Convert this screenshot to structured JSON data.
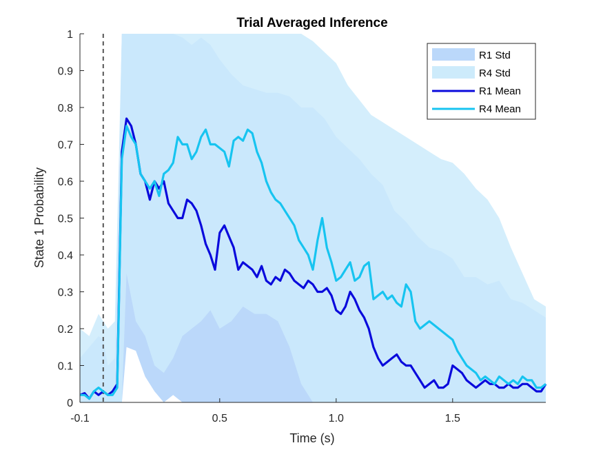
{
  "chart_data": {
    "type": "line",
    "title": "Trial Averaged Inference",
    "xlabel": "Time (s)",
    "ylabel": "State 1 Probability",
    "xlim": [
      -0.1,
      1.9
    ],
    "ylim": [
      0,
      1
    ],
    "x_ticks": [
      -0.1,
      0.5,
      1.0,
      1.5
    ],
    "x_tick_labels": [
      "-0.1",
      "0.5",
      "1.0",
      "1.5"
    ],
    "y_ticks": [
      0,
      0.1,
      0.2,
      0.3,
      0.4,
      0.5,
      0.6,
      0.7,
      0.8,
      0.9,
      1
    ],
    "y_tick_labels": [
      "0",
      "0.1",
      "0.2",
      "0.3",
      "0.4",
      "0.5",
      "0.6",
      "0.7",
      "0.8",
      "0.9",
      "1"
    ],
    "grid": false,
    "legend_position": "top-right",
    "event_marker_x": 0,
    "colors": {
      "r1_mean": "#0A0ADC",
      "r4_mean": "#17C4F0",
      "r1_std": "#BBD8FA",
      "r4_std": "#CDEBFB",
      "overlap": "#B9E1FA",
      "event_line": "#555555"
    },
    "legend": [
      {
        "label": "R1 Std",
        "kind": "patch",
        "color": "#BBD8FA"
      },
      {
        "label": "R4 Std",
        "kind": "patch",
        "color": "#CDEBFB"
      },
      {
        "label": "R1 Mean",
        "kind": "line",
        "color": "#0A0ADC"
      },
      {
        "label": "R4 Mean",
        "kind": "line",
        "color": "#17C4F0"
      }
    ],
    "series": [
      {
        "name": "R1 Mean",
        "x": [
          -0.1,
          -0.08,
          -0.06,
          -0.04,
          -0.02,
          0,
          0.02,
          0.04,
          0.06,
          0.08,
          0.1,
          0.12,
          0.14,
          0.16,
          0.18,
          0.2,
          0.22,
          0.24,
          0.26,
          0.28,
          0.3,
          0.32,
          0.34,
          0.36,
          0.38,
          0.4,
          0.42,
          0.44,
          0.46,
          0.48,
          0.5,
          0.52,
          0.54,
          0.56,
          0.58,
          0.6,
          0.62,
          0.64,
          0.66,
          0.68,
          0.7,
          0.72,
          0.74,
          0.76,
          0.78,
          0.8,
          0.82,
          0.84,
          0.86,
          0.88,
          0.9,
          0.92,
          0.94,
          0.96,
          0.98,
          1.0,
          1.02,
          1.04,
          1.06,
          1.08,
          1.1,
          1.12,
          1.14,
          1.16,
          1.18,
          1.2,
          1.22,
          1.24,
          1.26,
          1.28,
          1.3,
          1.32,
          1.34,
          1.36,
          1.38,
          1.4,
          1.42,
          1.44,
          1.46,
          1.48,
          1.5,
          1.52,
          1.54,
          1.56,
          1.58,
          1.6,
          1.62,
          1.64,
          1.66,
          1.68,
          1.7,
          1.72,
          1.74,
          1.76,
          1.78,
          1.8,
          1.82,
          1.84,
          1.86,
          1.88,
          1.9
        ],
        "values": [
          0.02,
          0.025,
          0.01,
          0.03,
          0.02,
          0.03,
          0.02,
          0.03,
          0.05,
          0.68,
          0.77,
          0.75,
          0.7,
          0.62,
          0.6,
          0.55,
          0.6,
          0.58,
          0.6,
          0.54,
          0.52,
          0.5,
          0.5,
          0.55,
          0.54,
          0.52,
          0.48,
          0.43,
          0.4,
          0.36,
          0.46,
          0.48,
          0.45,
          0.42,
          0.36,
          0.38,
          0.37,
          0.36,
          0.34,
          0.37,
          0.33,
          0.32,
          0.34,
          0.33,
          0.36,
          0.35,
          0.33,
          0.32,
          0.31,
          0.33,
          0.32,
          0.3,
          0.3,
          0.31,
          0.29,
          0.25,
          0.24,
          0.26,
          0.3,
          0.28,
          0.25,
          0.23,
          0.2,
          0.15,
          0.12,
          0.1,
          0.11,
          0.12,
          0.13,
          0.11,
          0.1,
          0.1,
          0.08,
          0.06,
          0.04,
          0.05,
          0.06,
          0.04,
          0.04,
          0.05,
          0.1,
          0.09,
          0.08,
          0.06,
          0.05,
          0.04,
          0.05,
          0.06,
          0.05,
          0.05,
          0.04,
          0.04,
          0.05,
          0.04,
          0.04,
          0.05,
          0.05,
          0.04,
          0.03,
          0.03,
          0.05
        ]
      },
      {
        "name": "R4 Mean",
        "x": [
          -0.1,
          -0.08,
          -0.06,
          -0.04,
          -0.02,
          0,
          0.02,
          0.04,
          0.06,
          0.08,
          0.1,
          0.12,
          0.14,
          0.16,
          0.18,
          0.2,
          0.22,
          0.24,
          0.26,
          0.28,
          0.3,
          0.32,
          0.34,
          0.36,
          0.38,
          0.4,
          0.42,
          0.44,
          0.46,
          0.48,
          0.5,
          0.52,
          0.54,
          0.56,
          0.58,
          0.6,
          0.62,
          0.64,
          0.66,
          0.68,
          0.7,
          0.72,
          0.74,
          0.76,
          0.78,
          0.8,
          0.82,
          0.84,
          0.86,
          0.88,
          0.9,
          0.92,
          0.94,
          0.96,
          0.98,
          1.0,
          1.02,
          1.04,
          1.06,
          1.08,
          1.1,
          1.12,
          1.14,
          1.16,
          1.18,
          1.2,
          1.22,
          1.24,
          1.26,
          1.28,
          1.3,
          1.32,
          1.34,
          1.36,
          1.38,
          1.4,
          1.42,
          1.44,
          1.46,
          1.48,
          1.5,
          1.52,
          1.54,
          1.56,
          1.58,
          1.6,
          1.62,
          1.64,
          1.66,
          1.68,
          1.7,
          1.72,
          1.74,
          1.76,
          1.78,
          1.8,
          1.82,
          1.84,
          1.86,
          1.88,
          1.9
        ],
        "values": [
          0.02,
          0.02,
          0.01,
          0.03,
          0.04,
          0.03,
          0.02,
          0.02,
          0.04,
          0.66,
          0.75,
          0.72,
          0.7,
          0.62,
          0.6,
          0.58,
          0.6,
          0.56,
          0.62,
          0.63,
          0.65,
          0.72,
          0.7,
          0.7,
          0.66,
          0.68,
          0.72,
          0.74,
          0.7,
          0.7,
          0.69,
          0.68,
          0.64,
          0.71,
          0.72,
          0.71,
          0.74,
          0.73,
          0.68,
          0.65,
          0.6,
          0.57,
          0.55,
          0.54,
          0.52,
          0.5,
          0.48,
          0.44,
          0.42,
          0.4,
          0.36,
          0.44,
          0.5,
          0.42,
          0.38,
          0.33,
          0.34,
          0.36,
          0.38,
          0.33,
          0.34,
          0.37,
          0.38,
          0.28,
          0.29,
          0.3,
          0.28,
          0.29,
          0.27,
          0.26,
          0.32,
          0.3,
          0.22,
          0.2,
          0.21,
          0.22,
          0.21,
          0.2,
          0.19,
          0.18,
          0.17,
          0.14,
          0.12,
          0.1,
          0.09,
          0.08,
          0.06,
          0.07,
          0.06,
          0.05,
          0.07,
          0.06,
          0.05,
          0.06,
          0.05,
          0.07,
          0.06,
          0.06,
          0.04,
          0.04,
          0.05
        ]
      }
    ],
    "bands": [
      {
        "name": "R1 Std",
        "x": [
          -0.1,
          -0.06,
          -0.02,
          0.0,
          0.02,
          0.05,
          0.08,
          0.1,
          0.14,
          0.18,
          0.22,
          0.26,
          0.3,
          0.34,
          0.38,
          0.42,
          0.46,
          0.5,
          0.55,
          0.6,
          0.65,
          0.7,
          0.75,
          0.8,
          0.85,
          0.9,
          0.95,
          1.0,
          1.05,
          1.1,
          1.15,
          1.2,
          1.25,
          1.3,
          1.35,
          1.4,
          1.45,
          1.5,
          1.55,
          1.6,
          1.65,
          1.7,
          1.75,
          1.8,
          1.85,
          1.9
        ],
        "upper": [
          0.12,
          0.15,
          0.18,
          0.17,
          0.1,
          0.12,
          1,
          1,
          1,
          1,
          1,
          1,
          1,
          0.99,
          0.97,
          0.99,
          0.97,
          0.93,
          0.89,
          0.86,
          0.85,
          0.84,
          0.84,
          0.83,
          0.8,
          0.8,
          0.77,
          0.72,
          0.69,
          0.66,
          0.62,
          0.59,
          0.52,
          0.49,
          0.45,
          0.42,
          0.41,
          0.39,
          0.34,
          0.34,
          0.32,
          0.33,
          0.28,
          0.27,
          0.25,
          0.23
        ],
        "lower": [
          0,
          0,
          0,
          0,
          0,
          0,
          0,
          0.15,
          0.14,
          0.07,
          0.03,
          0,
          0.02,
          0,
          0,
          0,
          0,
          0,
          0,
          0,
          0,
          0,
          0,
          0,
          0,
          0,
          0,
          0,
          0,
          0,
          0,
          0,
          0,
          0,
          0,
          0,
          0,
          0,
          0,
          0,
          0,
          0,
          0,
          0,
          0,
          0
        ]
      },
      {
        "name": "R4 Std",
        "x": [
          -0.1,
          -0.06,
          -0.02,
          0.0,
          0.02,
          0.05,
          0.08,
          0.1,
          0.14,
          0.18,
          0.22,
          0.26,
          0.3,
          0.34,
          0.38,
          0.42,
          0.46,
          0.5,
          0.55,
          0.6,
          0.65,
          0.7,
          0.75,
          0.8,
          0.85,
          0.9,
          0.95,
          1.0,
          1.05,
          1.1,
          1.15,
          1.2,
          1.25,
          1.3,
          1.35,
          1.4,
          1.45,
          1.5,
          1.55,
          1.6,
          1.65,
          1.7,
          1.75,
          1.8,
          1.85,
          1.9
        ],
        "upper": [
          0.2,
          0.18,
          0.24,
          0.22,
          0.2,
          0.22,
          1,
          1,
          1,
          1,
          1,
          1,
          1,
          1,
          1,
          1,
          1,
          1,
          1,
          1,
          1,
          1,
          1,
          1,
          1,
          0.98,
          0.95,
          0.92,
          0.86,
          0.82,
          0.78,
          0.76,
          0.74,
          0.72,
          0.7,
          0.68,
          0.66,
          0.65,
          0.62,
          0.58,
          0.55,
          0.5,
          0.42,
          0.35,
          0.28,
          0.26
        ],
        "lower": [
          0,
          0,
          0,
          0,
          0,
          0,
          0,
          0.35,
          0.22,
          0.18,
          0.1,
          0.08,
          0.12,
          0.18,
          0.2,
          0.22,
          0.25,
          0.2,
          0.22,
          0.26,
          0.24,
          0.24,
          0.22,
          0.15,
          0.05,
          0,
          0,
          0,
          0,
          0,
          0,
          0,
          0,
          0,
          0,
          0,
          0,
          0,
          0,
          0,
          0,
          0,
          0,
          0,
          0,
          0
        ]
      }
    ]
  }
}
